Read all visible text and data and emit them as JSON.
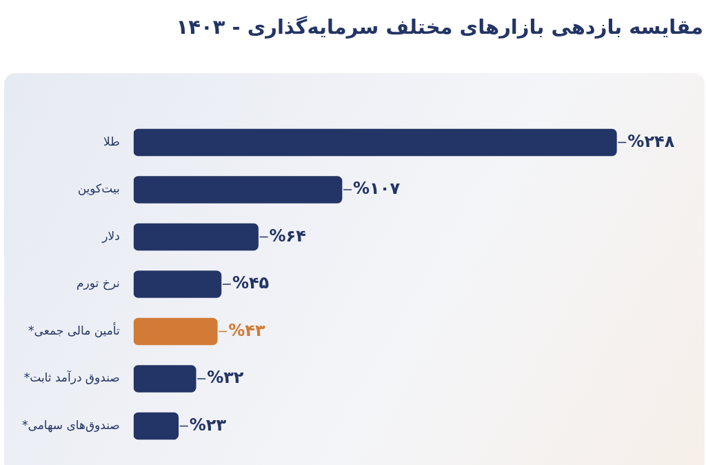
{
  "chart_data": {
    "type": "bar",
    "orientation": "horizontal",
    "title": "مقایسه بازدهی بازارهای مختلف سرمایه‌گذاری - ۱۴۰۳",
    "categories": [
      "طلا",
      "بیت‌کوین",
      "دلار",
      "نرخ تورم",
      "تأمین مالی جمعی*",
      "صندوق درآمد ثابت*",
      "صندوق‌های سهامی*"
    ],
    "values": [
      248,
      107,
      64,
      45,
      43,
      32,
      23
    ],
    "colors": [
      "#233466",
      "#233466",
      "#233466",
      "#233466",
      "#d17b36",
      "#233466",
      "#233466"
    ],
    "value_labels": [
      "%۲۴۸",
      "%۱۰۷",
      "%۶۴",
      "%۴۵",
      "%۴۳",
      "%۳۲",
      "%۲۳"
    ],
    "legend": false
  }
}
